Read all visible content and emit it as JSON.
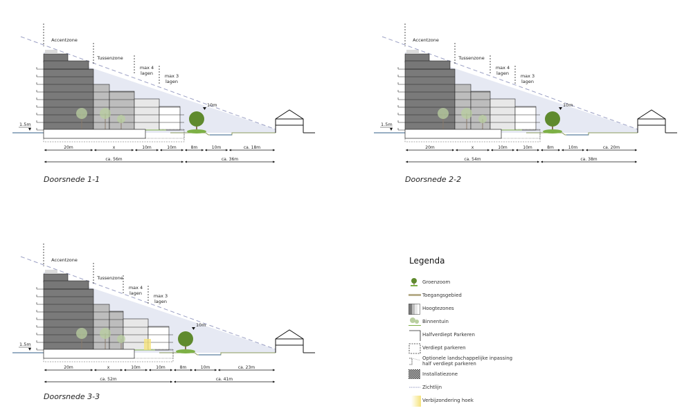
{
  "sections": [
    {
      "title": "Doorsnede 1-1",
      "zones": [
        "Accentzone",
        "Tussenzone",
        "max 4",
        "lagen",
        "max 3",
        "lagen"
      ],
      "level_left": "1.5m",
      "level_right": "10m",
      "dims": [
        "20m",
        "x",
        "10m",
        "10m",
        "8m",
        "10m",
        "ca. 18m"
      ],
      "totals": [
        "ca. 56m",
        "ca. 36m"
      ]
    },
    {
      "title": "Doorsnede 2-2",
      "zones": [
        "Accentzone",
        "Tussenzone",
        "max 4",
        "lagen",
        "max 3",
        "lagen"
      ],
      "level_left": "1.5m",
      "level_right": "10m",
      "dims": [
        "20m",
        "x",
        "10m",
        "10m",
        "8m",
        "10m",
        "ca. 20m"
      ],
      "totals": [
        "ca. 54m",
        "ca. 38m"
      ]
    },
    {
      "title": "Doorsnede 3-3",
      "zones": [
        "Accentzone",
        "Tussenzone",
        "max 4",
        "lagen",
        "max 3",
        "lagen"
      ],
      "level_left": "1.5m",
      "level_right": "10m",
      "dims": [
        "20m",
        "x",
        "10m",
        "10m",
        "8m",
        "10m",
        "ca. 23m"
      ],
      "totals": [
        "ca. 52m",
        "ca. 41m"
      ]
    }
  ],
  "legend": {
    "title": "Legenda",
    "items": [
      {
        "label": "Groenzoom",
        "icon": "tree-icon"
      },
      {
        "label": "Toegangsgebied",
        "icon": "access-bar-icon"
      },
      {
        "label": "Hoogtezones",
        "icon": "height-zones-icon"
      },
      {
        "label": "Binnentuin",
        "icon": "courtyard-trees-icon"
      },
      {
        "label": "Halfverdiept Parkeren",
        "icon": "half-sunken-parking-icon"
      },
      {
        "label": "Verdiept parkeren",
        "icon": "sunken-parking-icon"
      },
      {
        "label": "Optionele landschappelijke inpassing half verdiept parkeren",
        "icon": "optional-landscape-icon"
      },
      {
        "label": "Installatiezone",
        "icon": "installation-zone-icon"
      },
      {
        "label": "Zichtlijn",
        "icon": "sightline-icon"
      },
      {
        "label": "Verbijzondering hoek",
        "icon": "corner-highlight-icon"
      }
    ]
  },
  "colors": {
    "dark_zone": "#7a7a7a",
    "mid_zone": "#bdbdbd",
    "light_zone": "#e8e8e8",
    "sky": "#e6e9f3",
    "sightline": "#9a9fc4",
    "tree": "#5f8a2e",
    "water": "#2f5d87",
    "access": "#b8ae8c",
    "corner": "#f5e27a"
  }
}
